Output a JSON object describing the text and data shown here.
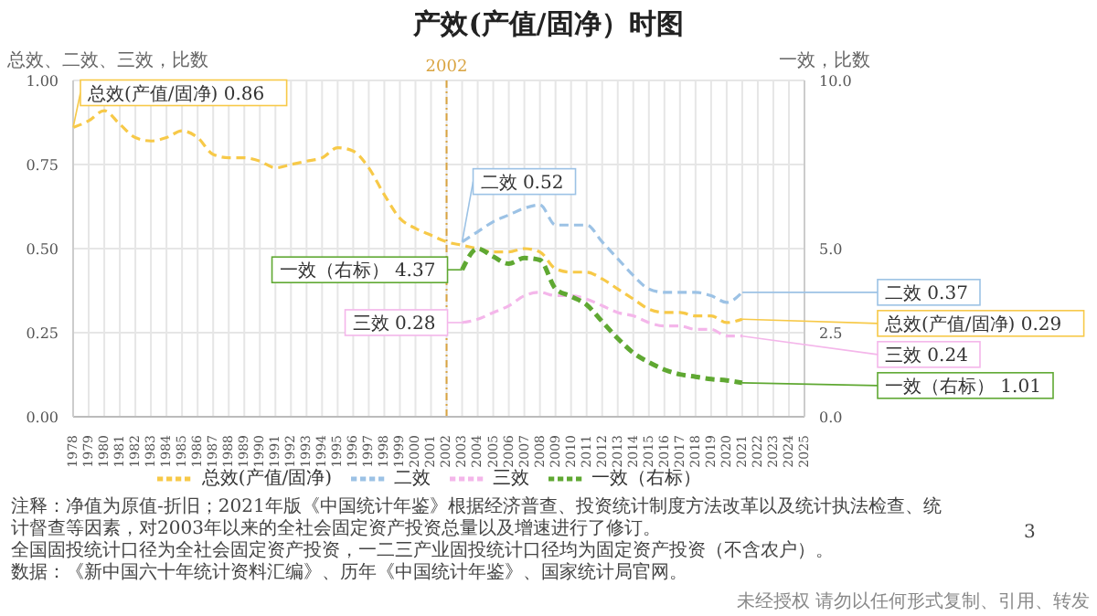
{
  "chart_data": {
    "type": "line",
    "title": "产效(产值/固净）时图",
    "ylabel": "总效、二效、三效，比数",
    "y2label": "一效，比数",
    "categories": [
      "1978",
      "1979",
      "1980",
      "1981",
      "1982",
      "1983",
      "1984",
      "1985",
      "1986",
      "1987",
      "1988",
      "1989",
      "1990",
      "1991",
      "1992",
      "1993",
      "1994",
      "1995",
      "1996",
      "1997",
      "1998",
      "1999",
      "2000",
      "2001",
      "2002",
      "2003",
      "2004",
      "2005",
      "2006",
      "2007",
      "2008",
      "2009",
      "2010",
      "2011",
      "2012",
      "2013",
      "2014",
      "2015",
      "2016",
      "2017",
      "2018",
      "2019",
      "2020",
      "2021",
      "2022",
      "2023",
      "2024",
      "2025"
    ],
    "series": [
      {
        "name": "总效(产值/固净)",
        "color": "#f7c948",
        "line_style": "dashed",
        "values": [
          0.86,
          0.88,
          0.91,
          0.87,
          0.83,
          0.82,
          0.83,
          0.85,
          0.83,
          0.78,
          0.77,
          0.77,
          0.76,
          0.74,
          0.75,
          0.76,
          0.77,
          0.8,
          0.79,
          0.74,
          0.66,
          0.59,
          0.56,
          0.54,
          0.52,
          0.51,
          0.5,
          0.49,
          0.49,
          0.5,
          0.49,
          0.44,
          0.43,
          0.43,
          0.41,
          0.38,
          0.35,
          0.32,
          0.31,
          0.31,
          0.3,
          0.3,
          0.28,
          0.29,
          null,
          null,
          null,
          null
        ],
        "value_labels": [
          "总效(产值/固净) 0.86",
          null,
          null,
          null,
          null,
          null,
          null,
          null,
          null,
          null,
          null,
          null,
          null,
          null,
          null,
          null,
          null,
          null,
          null,
          null,
          null,
          null,
          null,
          null,
          null,
          null,
          null,
          null,
          null,
          null,
          null,
          null,
          null,
          null,
          null,
          null,
          null,
          null,
          null,
          null,
          null,
          null,
          null,
          "总效(产值/固净) 0.29",
          null,
          null,
          null,
          null
        ]
      },
      {
        "name": "二效",
        "color": "#9cc2e5",
        "line_style": "dashed",
        "values": [
          null,
          null,
          null,
          null,
          null,
          null,
          null,
          null,
          null,
          null,
          null,
          null,
          null,
          null,
          null,
          null,
          null,
          null,
          null,
          null,
          null,
          null,
          null,
          null,
          null,
          0.52,
          0.55,
          0.58,
          0.6,
          0.62,
          0.63,
          0.57,
          0.57,
          0.57,
          0.52,
          0.47,
          0.42,
          0.38,
          0.37,
          0.37,
          0.37,
          0.36,
          0.34,
          0.37,
          null,
          null,
          null,
          null
        ],
        "value_labels": [
          null,
          null,
          null,
          null,
          null,
          null,
          null,
          null,
          null,
          null,
          null,
          null,
          null,
          null,
          null,
          null,
          null,
          null,
          null,
          null,
          null,
          null,
          null,
          null,
          null,
          "二效 0.52",
          null,
          null,
          null,
          null,
          null,
          null,
          null,
          null,
          null,
          null,
          null,
          null,
          null,
          null,
          null,
          null,
          null,
          "二效 0.37",
          null,
          null,
          null,
          null
        ]
      },
      {
        "name": "三效",
        "color": "#f4b6ea",
        "line_style": "dashed",
        "values": [
          null,
          null,
          null,
          null,
          null,
          null,
          null,
          null,
          null,
          null,
          null,
          null,
          null,
          null,
          null,
          null,
          null,
          null,
          null,
          null,
          null,
          null,
          null,
          null,
          null,
          0.28,
          0.29,
          0.31,
          0.33,
          0.36,
          0.37,
          0.36,
          0.36,
          0.35,
          0.33,
          0.31,
          0.3,
          0.28,
          0.27,
          0.27,
          0.26,
          0.26,
          0.24,
          0.24,
          null,
          null,
          null,
          null
        ],
        "value_labels": [
          null,
          null,
          null,
          null,
          null,
          null,
          null,
          null,
          null,
          null,
          null,
          null,
          null,
          null,
          null,
          null,
          null,
          null,
          null,
          null,
          null,
          null,
          null,
          null,
          null,
          "三效 0.28",
          null,
          null,
          null,
          null,
          null,
          null,
          null,
          null,
          null,
          null,
          null,
          null,
          null,
          null,
          null,
          null,
          null,
          "三效 0.24",
          null,
          null,
          null,
          null
        ]
      },
      {
        "name": "一效（右标）",
        "color": "#5fa832",
        "line_style": "dashed",
        "axis": "y2",
        "values": [
          null,
          null,
          null,
          null,
          null,
          null,
          null,
          null,
          null,
          null,
          null,
          null,
          null,
          null,
          null,
          null,
          null,
          null,
          null,
          null,
          null,
          null,
          null,
          null,
          null,
          4.37,
          5.0,
          4.76,
          4.55,
          4.72,
          4.66,
          3.81,
          3.58,
          3.33,
          2.83,
          2.33,
          1.9,
          1.62,
          1.4,
          1.26,
          1.19,
          1.12,
          1.08,
          1.01,
          null,
          null,
          null,
          null
        ],
        "value_labels": [
          null,
          null,
          null,
          null,
          null,
          null,
          null,
          null,
          null,
          null,
          null,
          null,
          null,
          null,
          null,
          null,
          null,
          null,
          null,
          null,
          null,
          null,
          null,
          null,
          null,
          "一效（右标） 4.37",
          null,
          null,
          null,
          null,
          null,
          null,
          null,
          null,
          null,
          null,
          null,
          null,
          null,
          null,
          null,
          null,
          null,
          "一效（右标） 1.01",
          null,
          null,
          null,
          null
        ]
      }
    ],
    "ylim": [
      0,
      1
    ],
    "yticks": [
      {
        "value": 0,
        "label": "0.00"
      },
      {
        "value": 0.25,
        "label": "0.25"
      },
      {
        "value": 0.5,
        "label": "0.50"
      },
      {
        "value": 0.75,
        "label": "0.75"
      },
      {
        "value": 1,
        "label": "1.00"
      }
    ],
    "y2lim": [
      0,
      10
    ],
    "y2ticks": [
      {
        "value": 0,
        "label": "0.0"
      },
      {
        "value": 2.5,
        "label": "2.5"
      },
      {
        "value": 5,
        "label": "5.0"
      },
      {
        "value": 10,
        "label": "10.0"
      }
    ],
    "ref_lines": [
      {
        "axis": "x",
        "value": "2002",
        "label": "2002",
        "color": "#d9a441",
        "line_style": "dashed"
      }
    ],
    "grid": true,
    "legend": "bottom",
    "annotations": [
      "注释：净值为原值-折旧；2021年版《中国统计年鉴》根据经济普查、投资统计制度方法改革以及统计执法检查、统计督查等因素，对2003年以来的全社会固定资产投资总量以及增速进行了修订。",
      "全国固投统计口径为全社会固定资产投资，一二三产业固投统计口径均为固定资产投资（不含农户）。",
      "数据：《新中国六十年统计资料汇编》、历年《中国统计年鉴》、国家统计局官网。",
      "3",
      "未经授权 请勿以任何形式复制、引用、转发"
    ]
  }
}
